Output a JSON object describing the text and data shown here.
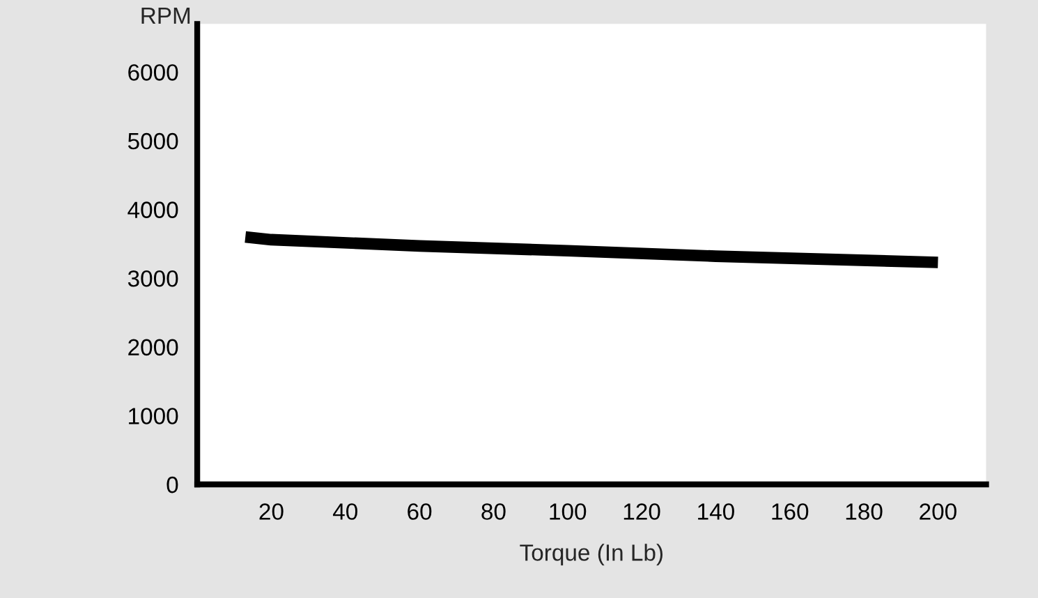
{
  "chart_data": {
    "type": "line",
    "xlabel": "Torque (In Lb)",
    "ylabel": "RPM",
    "x": [
      13,
      20,
      60,
      100,
      140,
      200
    ],
    "series": [
      {
        "color": "#000000",
        "values": [
          3600,
          3560,
          3470,
          3400,
          3320,
          3230
        ]
      }
    ],
    "xlim": [
      0,
      213
    ],
    "ylim": [
      0,
      6700
    ],
    "xticks": [
      20,
      40,
      60,
      80,
      100,
      120,
      140,
      160,
      180,
      200
    ],
    "yticks": [
      0,
      1000,
      2000,
      3000,
      4000,
      5000,
      6000
    ],
    "grid": false,
    "legend": false,
    "marker": "none",
    "line_style": "solid"
  }
}
